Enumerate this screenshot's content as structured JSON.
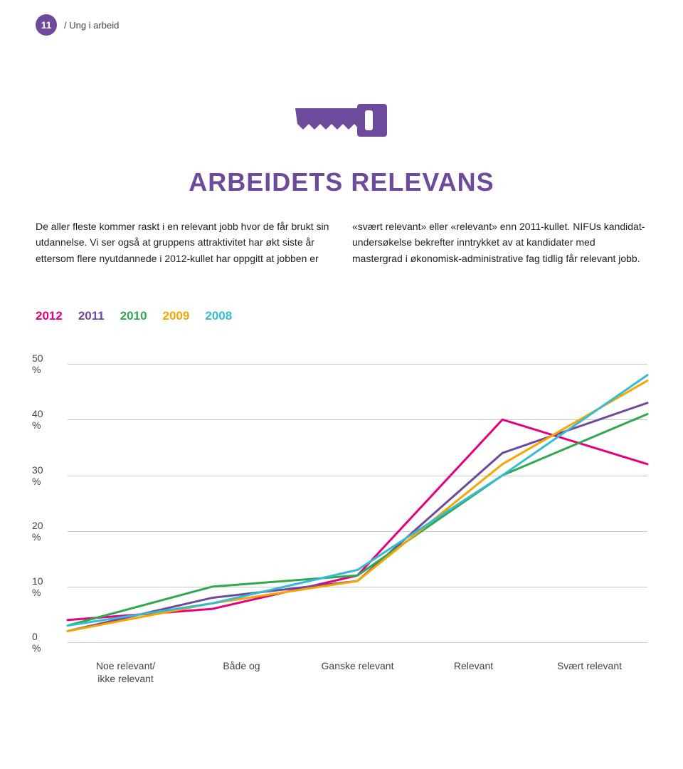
{
  "header": {
    "page_number": "11",
    "breadcrumb": "/ Ung i arbeid"
  },
  "title": "ARBEIDETS RELEVANS",
  "title_color": "#6d4a9c",
  "body": {
    "left": "De aller fleste kommer raskt i en relevant jobb hvor de får brukt sin utdannelse. Vi ser også at gruppens attraktivitet har økt siste år ettersom flere nyutdannede i 2012-kullet har oppgitt at jobben er",
    "right": "«svært relevant» eller «relevant» enn 2011-kullet. NIFUs kandidat­undersøkelse bekrefter inntrykket av at kandidater med mastergrad i økonomisk-administrative fag tidlig får relevant jobb."
  },
  "legend": [
    {
      "label": "2012",
      "color": "#e6007e"
    },
    {
      "label": "2011",
      "color": "#6d4a9c"
    },
    {
      "label": "2010",
      "color": "#2fa84f"
    },
    {
      "label": "2009",
      "color": "#f7a600"
    },
    {
      "label": "2008",
      "color": "#35bcd4"
    }
  ],
  "chart": {
    "type": "line",
    "x_categories": [
      "Noe relevant/\nikke relevant",
      "Både og",
      "Ganske relevant",
      "Relevant",
      "Svært relevant"
    ],
    "y_ticks": [
      0,
      10,
      20,
      30,
      40,
      50
    ],
    "y_tick_suffix": " %",
    "ylim": [
      0,
      55
    ],
    "gridline_color": "#c8c8c8",
    "line_width": 3,
    "series": [
      {
        "name": "2012",
        "color": "#e6007e",
        "values": [
          4,
          6,
          12,
          40,
          32
        ]
      },
      {
        "name": "2011",
        "color": "#6d4a9c",
        "values": [
          2,
          8,
          11,
          34,
          43
        ]
      },
      {
        "name": "2010",
        "color": "#2fa84f",
        "values": [
          3,
          10,
          12,
          30,
          41
        ]
      },
      {
        "name": "2009",
        "color": "#f7a600",
        "values": [
          2,
          7,
          11,
          32,
          47
        ]
      },
      {
        "name": "2008",
        "color": "#35bcd4",
        "values": [
          3,
          7,
          13,
          30,
          48
        ]
      }
    ],
    "background_color": "#ffffff",
    "axis_label_color": "#444444"
  }
}
